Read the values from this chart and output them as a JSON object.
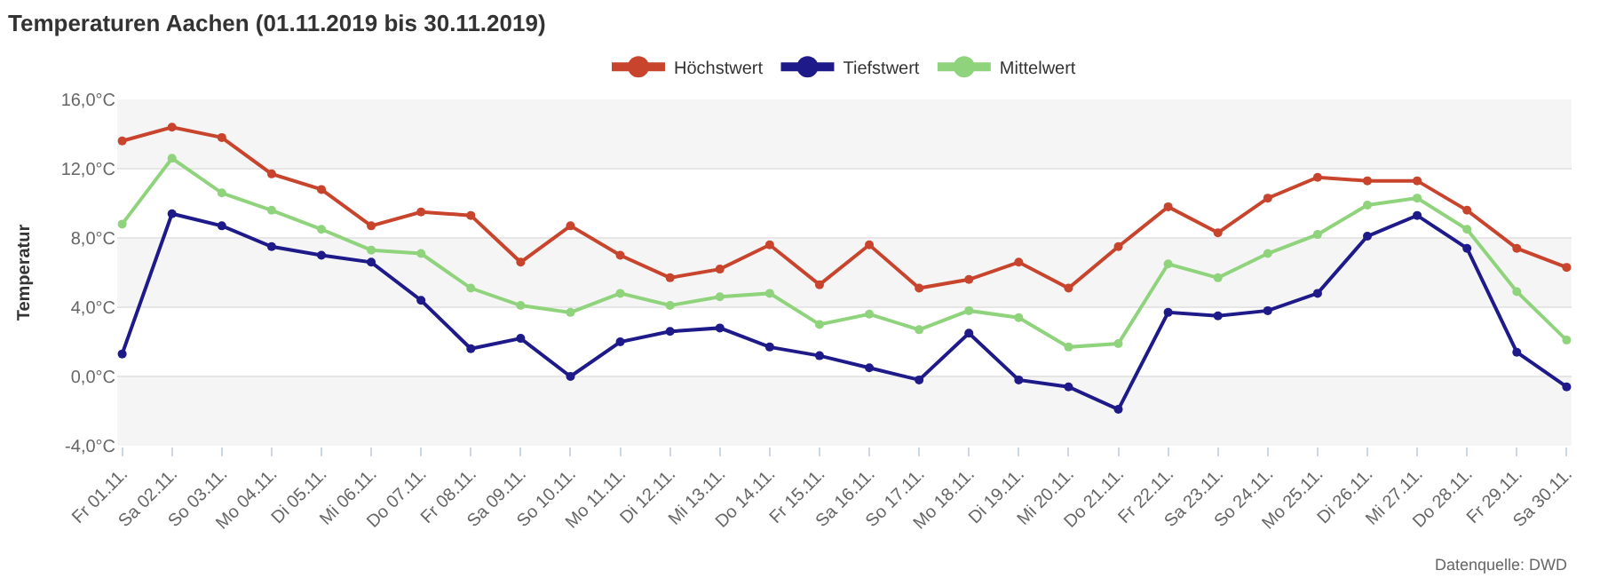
{
  "chart_data": {
    "type": "line",
    "title": "Temperaturen Aachen (01.11.2019 bis 30.11.2019)",
    "ylabel": "Temperatur",
    "categories": [
      "Fr 01.11.",
      "Sa 02.11.",
      "So 03.11.",
      "Mo 04.11.",
      "Di 05.11.",
      "Mi 06.11.",
      "Do 07.11.",
      "Fr 08.11.",
      "Sa 09.11.",
      "So 10.11.",
      "Mo 11.11.",
      "Di 12.11.",
      "Mi 13.11.",
      "Do 14.11.",
      "Fr 15.11.",
      "Sa 16.11.",
      "So 17.11.",
      "Mo 18.11.",
      "Di 19.11.",
      "Mi 20.11.",
      "Do 21.11.",
      "Fr 22.11.",
      "Sa 23.11.",
      "So 24.11.",
      "Mo 25.11.",
      "Di 26.11.",
      "Mi 27.11.",
      "Do 28.11.",
      "Fr 29.11.",
      "Sa 30.11."
    ],
    "series": [
      {
        "name": "Höchstwert",
        "color": "#c8442c",
        "values": [
          13.6,
          14.4,
          13.8,
          11.7,
          10.8,
          8.7,
          9.5,
          9.3,
          6.6,
          8.7,
          7.0,
          5.7,
          6.2,
          7.6,
          5.3,
          7.6,
          5.1,
          5.6,
          6.6,
          5.1,
          7.5,
          9.8,
          8.3,
          10.3,
          11.5,
          11.3,
          11.3,
          9.6,
          7.4,
          6.3
        ]
      },
      {
        "name": "Tiefstwert",
        "color": "#1f1a8a",
        "values": [
          1.3,
          9.4,
          8.7,
          7.5,
          7.0,
          6.6,
          4.4,
          1.6,
          2.2,
          0.0,
          2.0,
          2.6,
          2.8,
          1.7,
          1.2,
          0.5,
          -0.2,
          2.5,
          -0.2,
          -0.6,
          -1.9,
          3.7,
          3.5,
          3.8,
          4.8,
          8.1,
          9.3,
          7.4,
          1.4,
          -0.6
        ]
      },
      {
        "name": "Mittelwert",
        "color": "#8fd47c",
        "values": [
          8.8,
          12.6,
          10.6,
          9.6,
          8.5,
          7.3,
          7.1,
          5.1,
          4.1,
          3.7,
          4.8,
          4.1,
          4.6,
          4.8,
          3.0,
          3.6,
          2.7,
          3.8,
          3.4,
          1.7,
          1.9,
          6.5,
          5.7,
          7.1,
          8.2,
          9.9,
          10.3,
          8.5,
          4.9,
          2.1
        ]
      }
    ],
    "ylim": [
      -4,
      16
    ],
    "yticks": [
      {
        "value": -4,
        "label": "-4,0°C"
      },
      {
        "value": 0,
        "label": "0,0°C"
      },
      {
        "value": 4,
        "label": "4,0°C"
      },
      {
        "value": 8,
        "label": "8,0°C"
      },
      {
        "value": 12,
        "label": "12,0°C"
      },
      {
        "value": 16,
        "label": "16,0°C"
      }
    ],
    "bands": [
      {
        "axis": "y",
        "from": -4,
        "to": 0,
        "color": "#f5f5f5"
      },
      {
        "axis": "y",
        "from": 4,
        "to": 8,
        "color": "#f5f5f5"
      },
      {
        "axis": "y",
        "from": 12,
        "to": 16,
        "color": "#f5f5f5"
      }
    ],
    "grid": "y",
    "legend": "top",
    "marker": "circle",
    "line_style": "solid",
    "annotations": [
      "Datenquelle: DWD"
    ]
  }
}
